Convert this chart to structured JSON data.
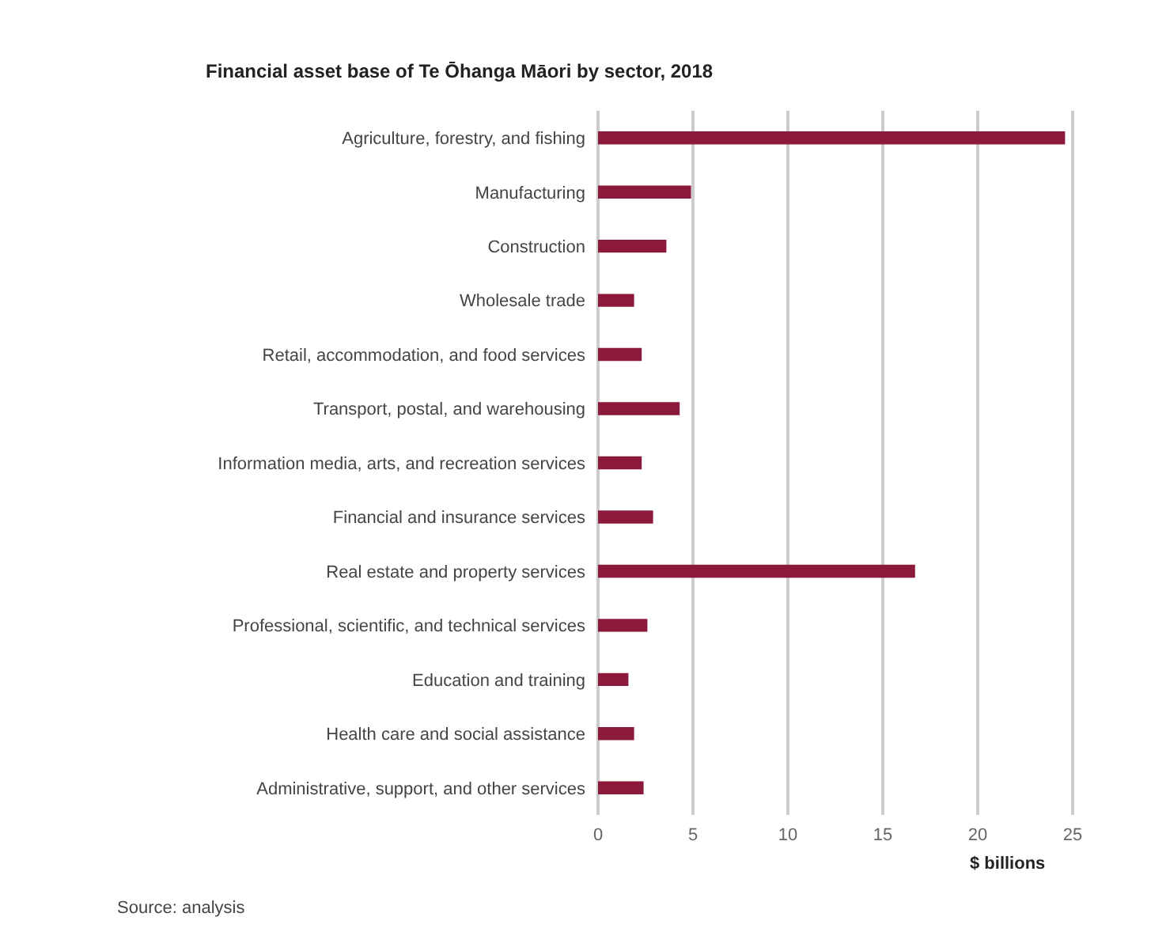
{
  "chart_data": {
    "type": "bar",
    "orientation": "horizontal",
    "title": "Financial asset base of Te Ōhanga Māori by sector, 2018",
    "xlabel": "$ billions",
    "categories": [
      "Agriculture, forestry, and fishing",
      "Manufacturing",
      "Construction",
      "Wholesale trade",
      "Retail, accommodation, and food services",
      "Transport, postal, and warehousing",
      "Information media, arts, and recreation services",
      "Financial and insurance services",
      "Real estate and property services",
      "Professional, scientific, and technical services",
      "Education and training",
      "Health care and social assistance",
      "Administrative, support, and other services"
    ],
    "values": [
      24.6,
      4.9,
      3.6,
      1.9,
      2.3,
      4.3,
      2.3,
      2.9,
      16.7,
      2.6,
      1.6,
      1.9,
      2.4
    ],
    "color": "#8b1a3a",
    "xlim": [
      0,
      25
    ],
    "xticks": [
      0,
      5,
      10,
      15,
      20,
      25
    ],
    "grid": "x",
    "annotations": [
      "Source: analysis"
    ]
  }
}
